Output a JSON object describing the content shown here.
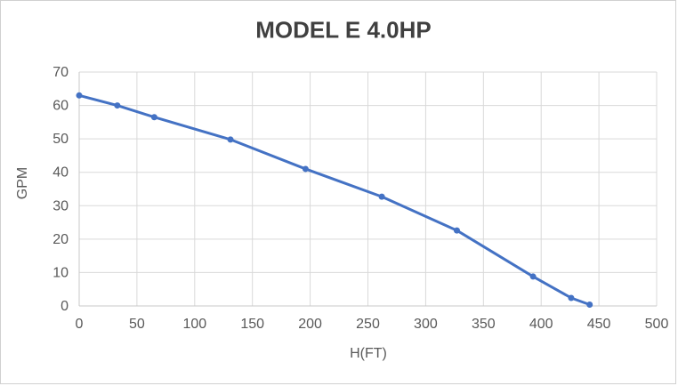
{
  "window": {
    "background": "#FFFFFF",
    "border_color": "#D0D0D0"
  },
  "chart_data": {
    "type": "line",
    "title": "MODEL E 4.0HP",
    "xlabel": "H(FT)",
    "ylabel": "GPM",
    "xlim": [
      0,
      500
    ],
    "ylim": [
      0,
      70
    ],
    "x_ticks": [
      0,
      50,
      100,
      150,
      200,
      250,
      300,
      350,
      400,
      450,
      500
    ],
    "y_ticks": [
      0,
      10,
      20,
      30,
      40,
      50,
      60,
      70
    ],
    "grid": true,
    "legend": false,
    "series": [
      {
        "marker": "circle",
        "color": "#4472C4",
        "x": [
          0,
          33,
          65,
          131,
          196,
          262,
          327,
          393,
          426,
          442
        ],
        "y": [
          63,
          60,
          56.5,
          49.8,
          41,
          32.7,
          22.6,
          8.8,
          2.4,
          0.4
        ]
      }
    ],
    "colors": {
      "gridline": "#D9D9D9",
      "axis_line": "#C9C9C9",
      "tick_label": "#595959",
      "axis_title": "#595959",
      "title": "#404040"
    }
  }
}
